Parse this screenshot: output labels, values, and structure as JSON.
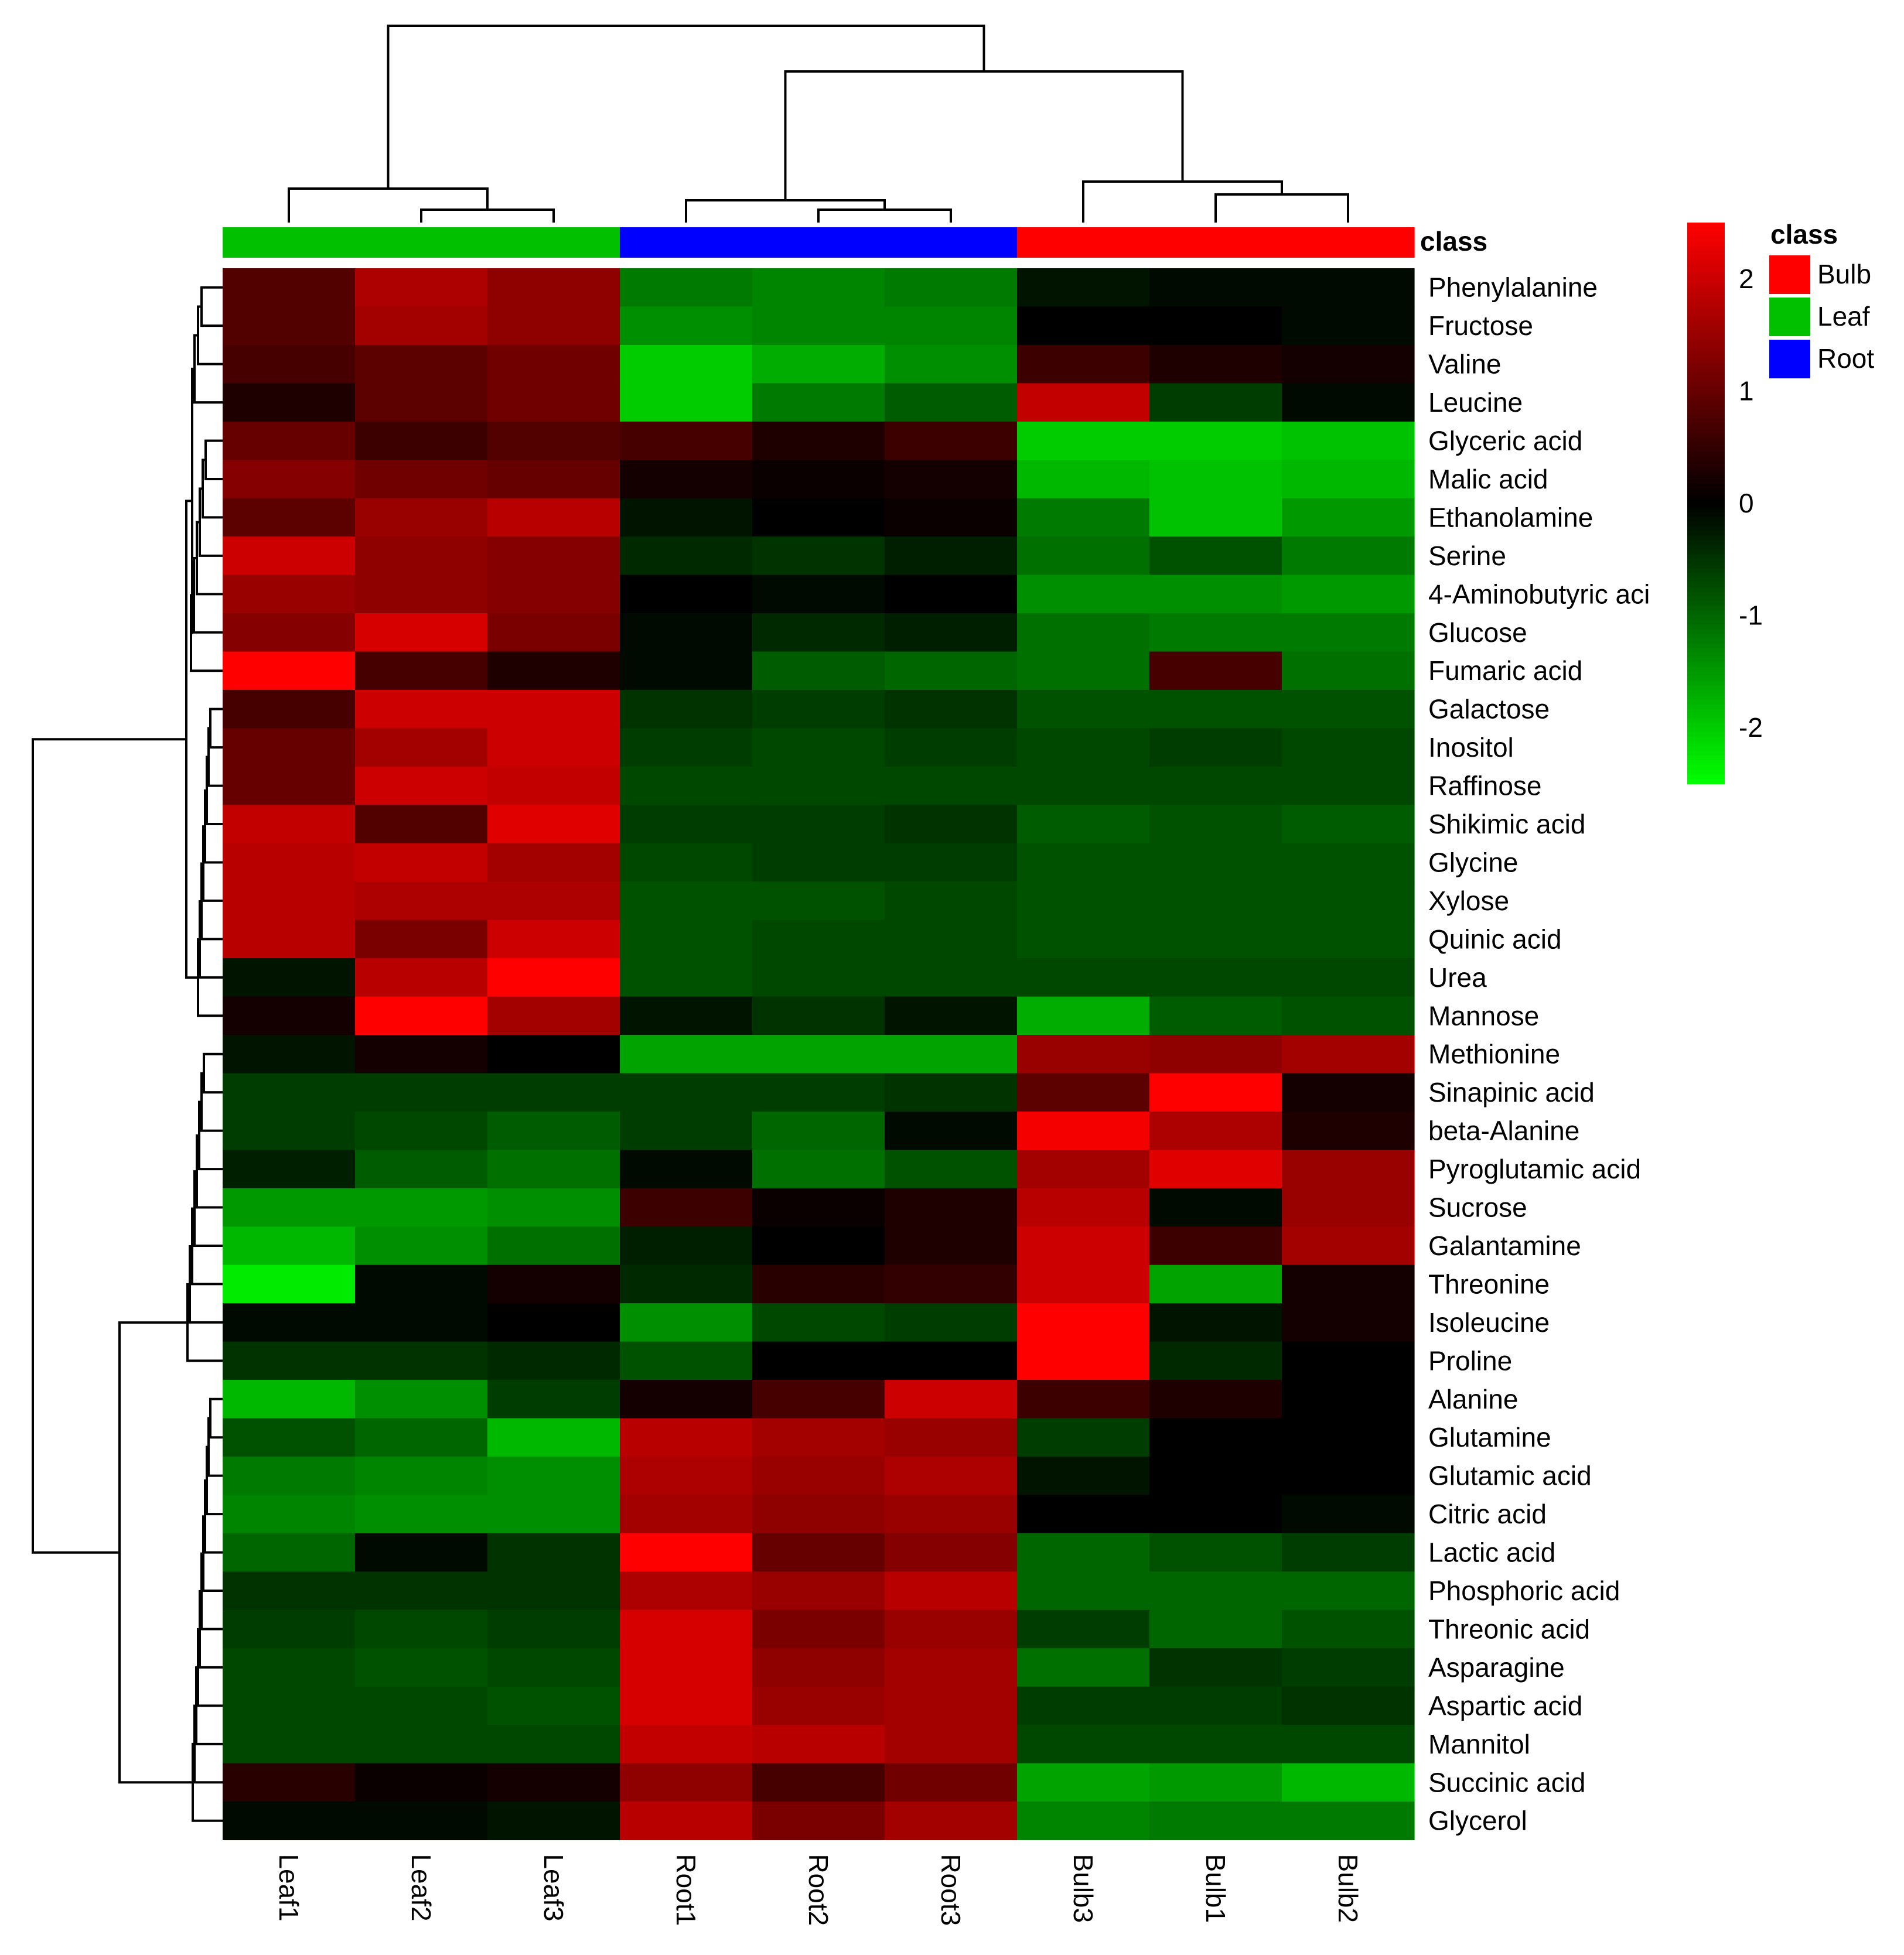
{
  "chart_data": {
    "type": "heatmap",
    "columns": [
      "Leaf1",
      "Leaf2",
      "Leaf3",
      "Root1",
      "Root2",
      "Root3",
      "Bulb3",
      "Bulb1",
      "Bulb2"
    ],
    "column_classes": [
      "Leaf",
      "Leaf",
      "Leaf",
      "Root",
      "Root",
      "Root",
      "Bulb",
      "Bulb",
      "Bulb"
    ],
    "rows": [
      "Phenylalanine",
      "Fructose",
      "Valine",
      "Leucine",
      "Glyceric acid",
      "Malic acid",
      "Ethanolamine",
      "Serine",
      "4-Aminobutyric aci",
      "Glucose",
      "Fumaric acid",
      "Galactose",
      "Inositol",
      "Raffinose",
      "Shikimic acid",
      "Glycine",
      "Xylose",
      "Quinic acid",
      "Urea",
      "Mannose",
      "Methionine",
      "Sinapinic acid",
      "beta-Alanine",
      "Pyroglutamic acid",
      "Sucrose",
      "Galantamine",
      "Threonine",
      "Isoleucine",
      "Proline",
      "Alanine",
      "Glutamine",
      "Glutamic acid",
      "Citric acid",
      "Lactic acid",
      "Phosphoric acid",
      "Threonic acid",
      "Asparagine",
      "Aspartic acid",
      "Mannitol",
      "Succinic acid",
      "Glycerol"
    ],
    "values": [
      [
        0.8,
        1.7,
        1.4,
        -1.2,
        -1.3,
        -1.2,
        -0.2,
        -0.1,
        -0.1
      ],
      [
        0.8,
        1.6,
        1.4,
        -1.4,
        -1.3,
        -1.3,
        0.0,
        0.0,
        -0.1
      ],
      [
        0.7,
        0.9,
        1.1,
        -2.0,
        -1.7,
        -1.4,
        0.6,
        0.3,
        0.2
      ],
      [
        0.3,
        0.9,
        1.1,
        -2.0,
        -1.2,
        -0.9,
        1.9,
        -0.6,
        -0.1
      ],
      [
        1.0,
        0.6,
        0.8,
        0.7,
        0.3,
        0.6,
        -2.0,
        -2.0,
        -1.9
      ],
      [
        1.3,
        1.1,
        1.0,
        0.2,
        0.1,
        0.2,
        -1.8,
        -1.9,
        -1.8
      ],
      [
        0.9,
        1.5,
        1.8,
        -0.2,
        0.0,
        0.1,
        -1.2,
        -1.9,
        -1.5
      ],
      [
        2.0,
        1.4,
        1.3,
        -0.4,
        -0.5,
        -0.3,
        -1.1,
        -0.8,
        -1.2
      ],
      [
        1.5,
        1.4,
        1.3,
        0.0,
        -0.1,
        0.0,
        -1.4,
        -1.4,
        -1.5
      ],
      [
        1.3,
        2.1,
        1.2,
        -0.1,
        -0.4,
        -0.3,
        -1.1,
        -1.2,
        -1.2
      ],
      [
        2.5,
        0.7,
        0.3,
        -0.1,
        -0.9,
        -1.0,
        -1.1,
        0.7,
        -1.1
      ],
      [
        0.7,
        2.0,
        2.0,
        -0.5,
        -0.6,
        -0.5,
        -0.8,
        -0.8,
        -0.8
      ],
      [
        1.0,
        1.6,
        2.0,
        -0.6,
        -0.7,
        -0.6,
        -0.7,
        -0.6,
        -0.7
      ],
      [
        1.0,
        2.0,
        1.9,
        -0.7,
        -0.7,
        -0.7,
        -0.7,
        -0.7,
        -0.7
      ],
      [
        1.9,
        0.8,
        2.2,
        -0.6,
        -0.6,
        -0.5,
        -0.9,
        -0.8,
        -0.9
      ],
      [
        1.8,
        1.9,
        1.6,
        -0.7,
        -0.6,
        -0.6,
        -0.8,
        -0.8,
        -0.8
      ],
      [
        1.8,
        1.7,
        1.7,
        -0.8,
        -0.8,
        -0.7,
        -0.8,
        -0.8,
        -0.8
      ],
      [
        1.8,
        1.2,
        2.0,
        -0.8,
        -0.7,
        -0.7,
        -0.8,
        -0.8,
        -0.8
      ],
      [
        -0.2,
        1.8,
        2.5,
        -0.8,
        -0.7,
        -0.7,
        -0.7,
        -0.7,
        -0.7
      ],
      [
        0.2,
        2.5,
        1.6,
        -0.2,
        -0.5,
        -0.2,
        -1.7,
        -0.9,
        -0.8
      ],
      [
        -0.2,
        0.2,
        0.0,
        -1.6,
        -1.6,
        -1.6,
        1.5,
        1.4,
        1.6
      ],
      [
        -0.6,
        -0.6,
        -0.6,
        -0.6,
        -0.6,
        -0.5,
        0.9,
        2.8,
        0.2
      ],
      [
        -0.6,
        -0.7,
        -0.9,
        -0.6,
        -1.0,
        -0.1,
        2.4,
        1.7,
        0.3
      ],
      [
        -0.3,
        -0.9,
        -1.1,
        -0.1,
        -1.1,
        -0.8,
        1.6,
        2.2,
        1.5
      ],
      [
        -1.5,
        -1.5,
        -1.4,
        0.6,
        0.1,
        0.3,
        1.8,
        -0.1,
        1.5
      ],
      [
        -1.8,
        -1.4,
        -1.1,
        -0.3,
        0.0,
        0.3,
        2.0,
        0.6,
        1.6
      ],
      [
        -2.3,
        -0.1,
        0.2,
        -0.4,
        0.4,
        0.5,
        2.0,
        -1.6,
        0.2
      ],
      [
        -0.1,
        -0.1,
        0.0,
        -1.4,
        -0.7,
        -0.6,
        2.8,
        -0.2,
        0.2
      ],
      [
        -0.5,
        -0.5,
        -0.4,
        -0.8,
        0.0,
        0.0,
        2.8,
        -0.4,
        0.0
      ],
      [
        -1.8,
        -1.4,
        -0.6,
        0.2,
        0.7,
        2.0,
        0.6,
        0.3,
        0.0
      ],
      [
        -0.8,
        -1.0,
        -1.8,
        1.8,
        1.6,
        1.5,
        -0.6,
        0.0,
        0.0
      ],
      [
        -1.2,
        -1.3,
        -1.4,
        1.7,
        1.5,
        1.7,
        -0.2,
        0.0,
        0.0
      ],
      [
        -1.3,
        -1.4,
        -1.4,
        1.6,
        1.4,
        1.5,
        0.0,
        0.0,
        -0.1
      ],
      [
        -1.0,
        -0.1,
        -0.5,
        2.5,
        1.0,
        1.3,
        -1.0,
        -0.8,
        -0.6
      ],
      [
        -0.5,
        -0.5,
        -0.5,
        1.7,
        1.5,
        1.8,
        -1.0,
        -1.0,
        -1.0
      ],
      [
        -0.6,
        -0.7,
        -0.6,
        2.1,
        1.2,
        1.5,
        -0.6,
        -1.0,
        -0.8
      ],
      [
        -0.7,
        -0.8,
        -0.7,
        2.1,
        1.4,
        1.6,
        -1.1,
        -0.5,
        -0.6
      ],
      [
        -0.7,
        -0.7,
        -0.8,
        2.1,
        1.5,
        1.6,
        -0.6,
        -0.6,
        -0.5
      ],
      [
        -0.7,
        -0.7,
        -0.7,
        1.9,
        1.8,
        1.6,
        -0.7,
        -0.7,
        -0.7
      ],
      [
        0.4,
        0.1,
        0.2,
        1.4,
        0.7,
        1.1,
        -1.6,
        -1.5,
        -1.8
      ],
      [
        -0.1,
        -0.1,
        -0.2,
        1.8,
        1.2,
        1.6,
        -1.3,
        -1.2,
        -1.2
      ]
    ],
    "legend_title": "class",
    "legend": [
      {
        "label": "Bulb",
        "color": "#ff0000"
      },
      {
        "label": "Leaf",
        "color": "#00c000"
      },
      {
        "label": "Root",
        "color": "#0000ff"
      }
    ],
    "class_bar_label": "class",
    "colorbar": {
      "range": [
        -2.5,
        2.5
      ],
      "ticks": [
        {
          "value": 2,
          "label": "2"
        },
        {
          "value": 1,
          "label": "1"
        },
        {
          "value": 0,
          "label": "0"
        },
        {
          "value": -1,
          "label": "-1"
        },
        {
          "value": -2,
          "label": "-2"
        }
      ],
      "colors": {
        "low": "#00ff00",
        "mid": "#000000",
        "high": "#ff0000"
      }
    },
    "dendrogram_columns": true,
    "dendrogram_rows": true
  }
}
